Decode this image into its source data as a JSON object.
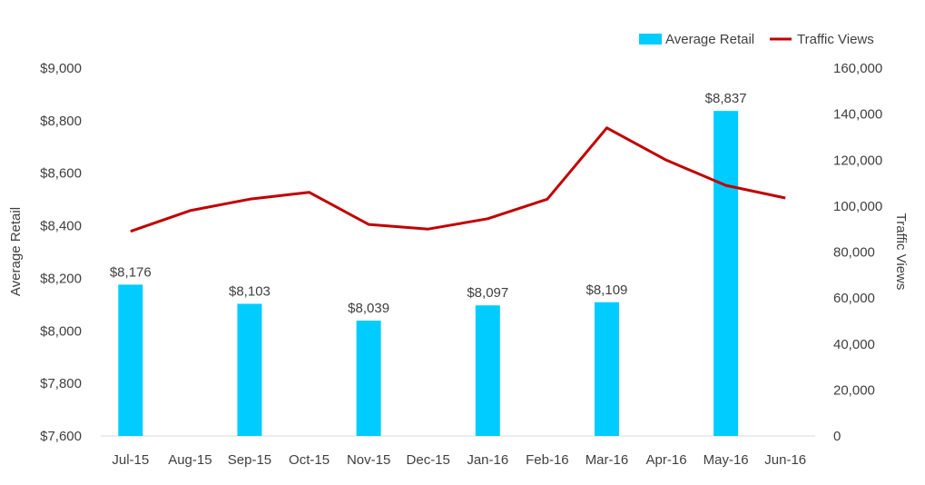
{
  "chart_data": {
    "type": "bar",
    "categories": [
      "Jul-15",
      "Aug-15",
      "Sep-15",
      "Oct-15",
      "Nov-15",
      "Dec-15",
      "Jan-16",
      "Feb-16",
      "Mar-16",
      "Apr-16",
      "May-16",
      "Jun-16"
    ],
    "series": [
      {
        "name": "Average Retail",
        "type": "bar",
        "axis": "left",
        "color": "#00CCFF",
        "values": [
          8176,
          null,
          8103,
          null,
          8039,
          null,
          8097,
          null,
          8109,
          null,
          8837,
          null
        ],
        "data_labels": [
          "$8,176",
          "",
          "$8,103",
          "",
          "$8,039",
          "",
          "$8,097",
          "",
          "$8,109",
          "",
          "$8,837",
          ""
        ]
      },
      {
        "name": "Traffic Views",
        "type": "line",
        "axis": "right",
        "color": "#C00000",
        "values": [
          89000,
          98000,
          103000,
          106000,
          92000,
          90000,
          94500,
          103000,
          134000,
          120000,
          109000,
          103500
        ]
      }
    ],
    "ylabel": "Average Retail",
    "y2label": "Traffic Views",
    "ylim": [
      7600,
      9000
    ],
    "y2lim": [
      0,
      160000
    ],
    "y_ticks": [
      "$9,000",
      "$8,800",
      "$8,600",
      "$8,400",
      "$8,200",
      "$8,000",
      "$7,800",
      "$7,600"
    ],
    "y2_ticks": [
      "160,000",
      "140,000",
      "120,000",
      "100,000",
      "80,000",
      "60,000",
      "40,000",
      "20,000",
      "0"
    ],
    "grid": false,
    "legend_position": "top-right"
  }
}
